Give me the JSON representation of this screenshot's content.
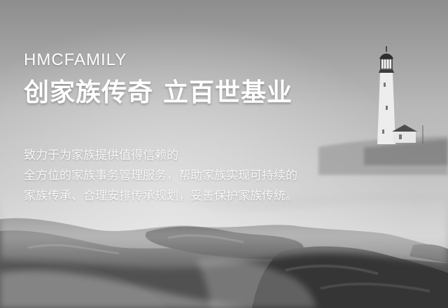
{
  "banner": {
    "brand": "HMCFAMILY",
    "headline_part1": "创家族传奇",
    "headline_part2": "立百世基业",
    "description_lines": [
      "致力于为家族提供值得信赖的",
      "全方位的家族事务管理服务，帮助家族实现可持续的",
      "家族传承、合理安排传承规划，妥善保护家族传统。"
    ],
    "image_subject": "lighthouse-on-rocky-coast",
    "colors": {
      "text": "#ffffff",
      "background_tone": "#b3b3b3"
    }
  }
}
